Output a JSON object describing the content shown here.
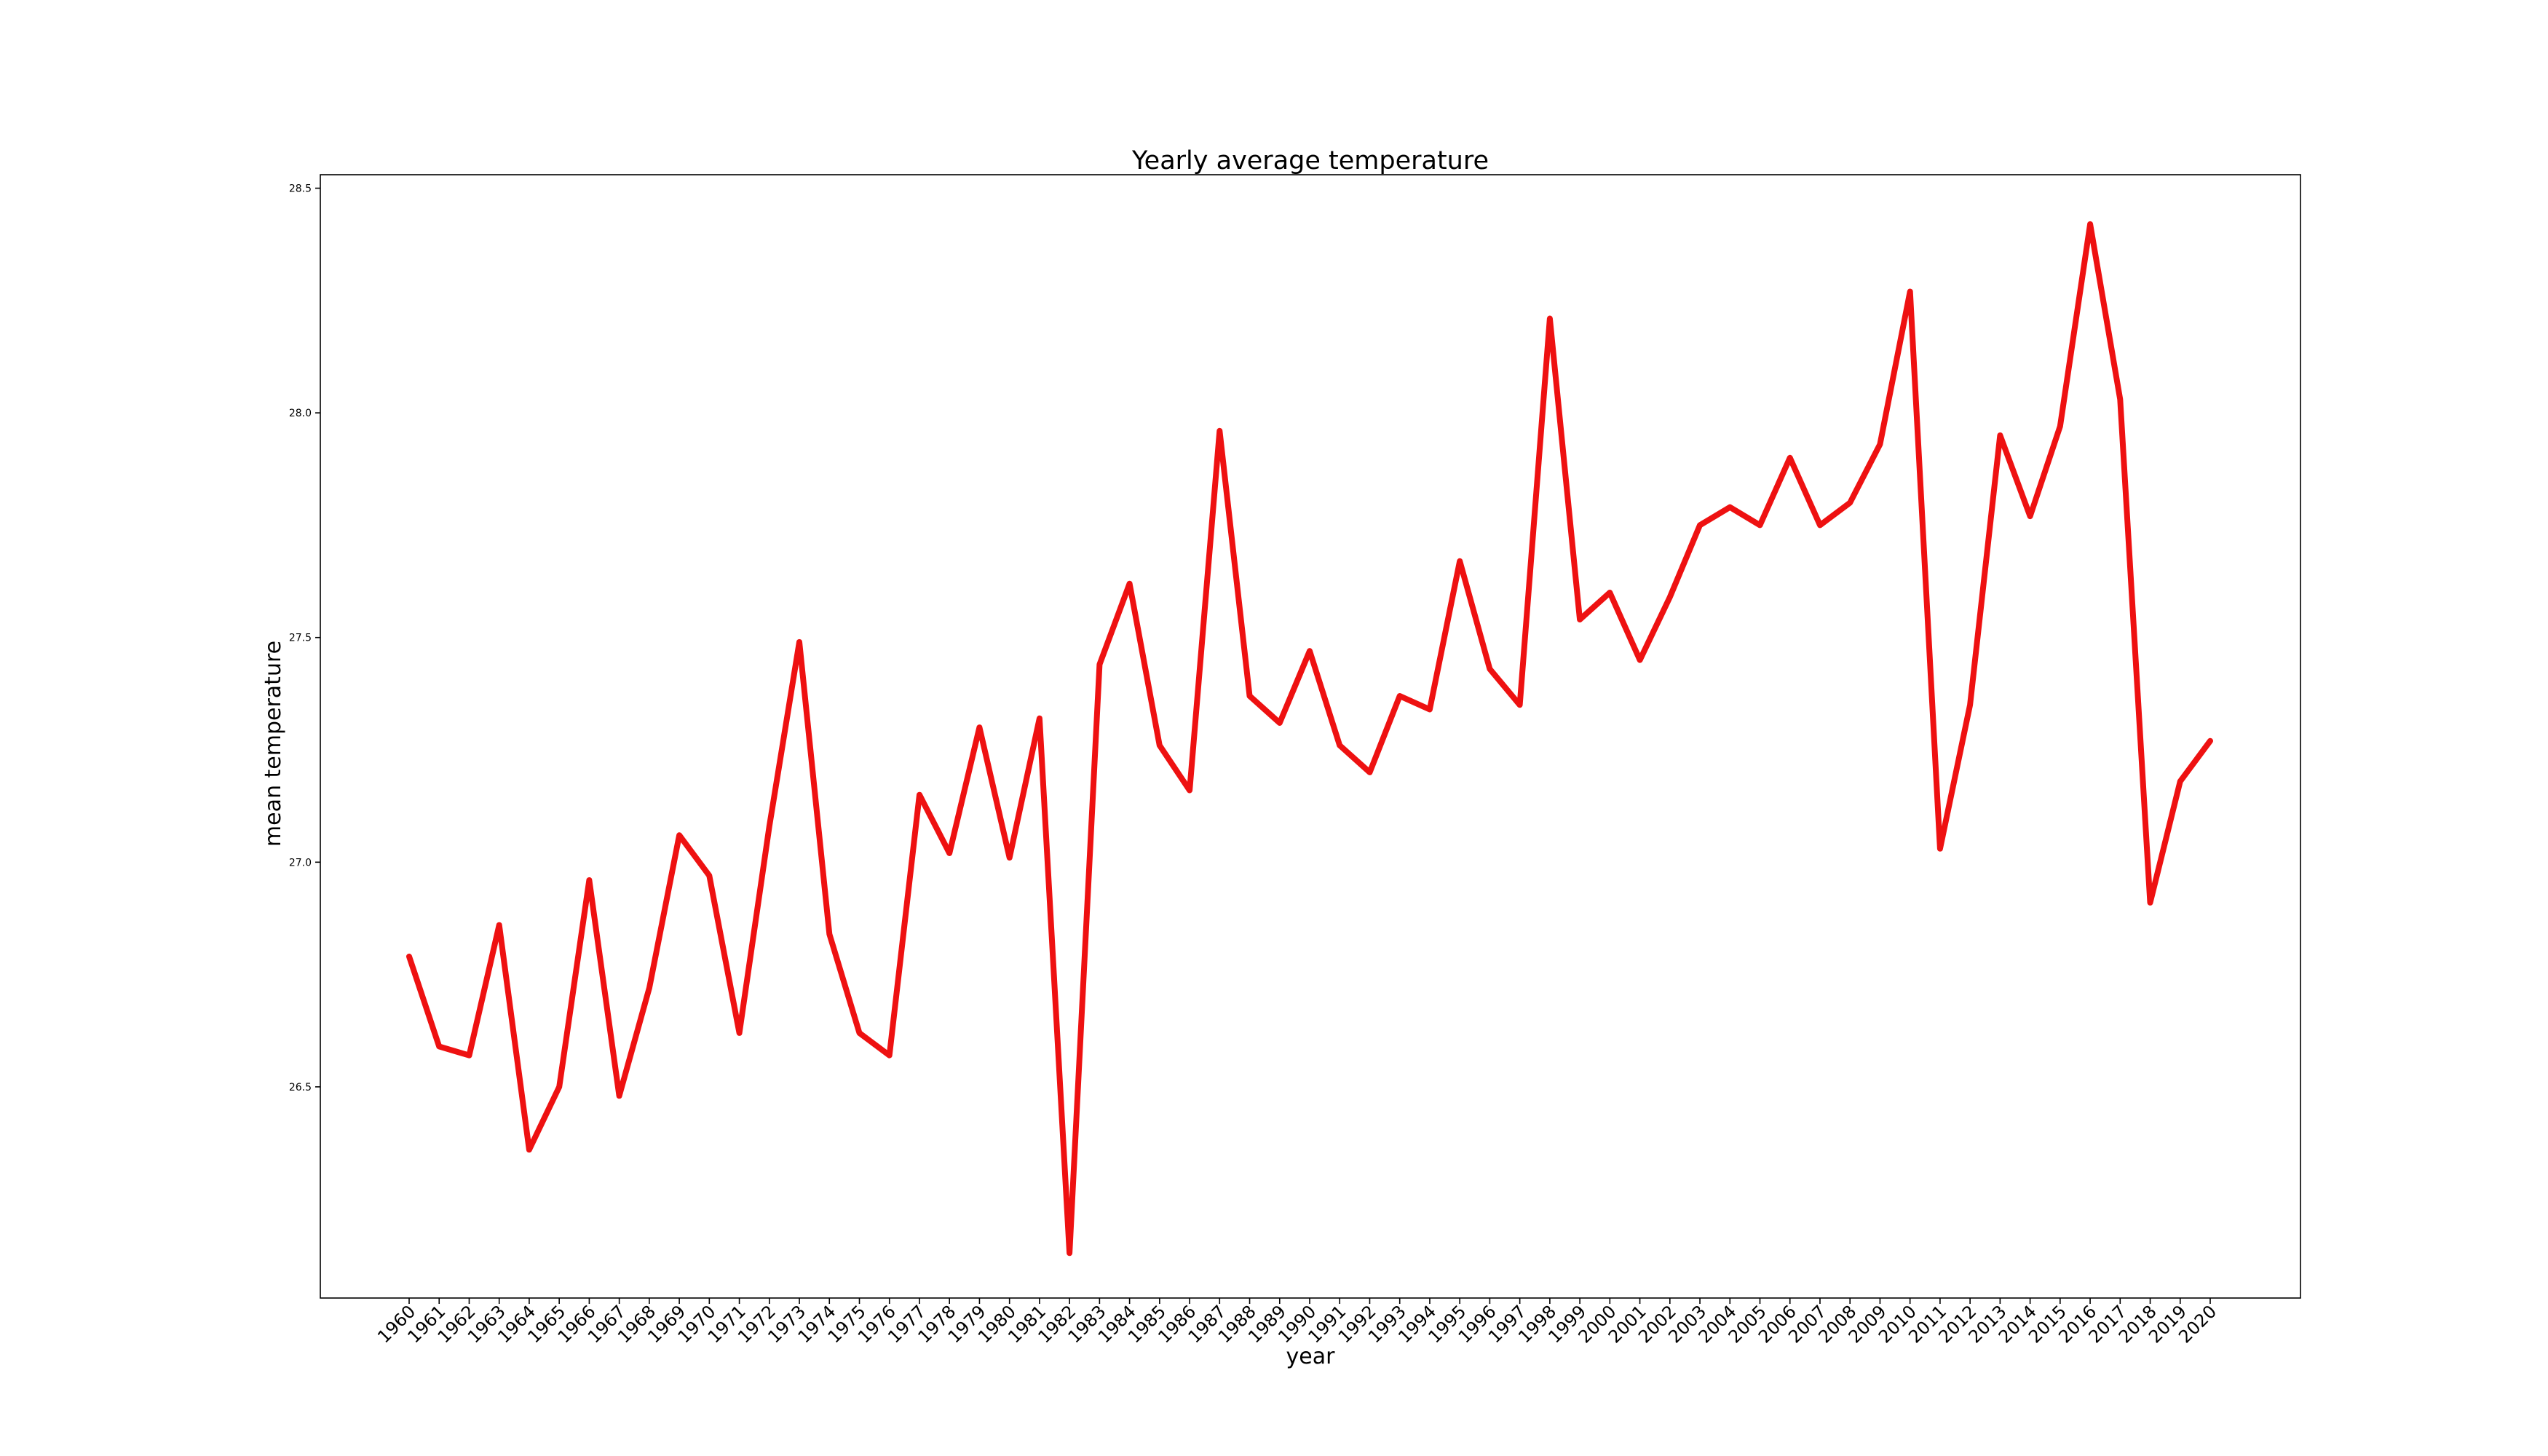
{
  "chart_data": {
    "type": "line",
    "title": "Yearly average temperature",
    "xlabel": "year",
    "ylabel": "mean temperature",
    "yticks": [
      "26.5",
      "27.0",
      "27.5",
      "28.0",
      "28.5"
    ],
    "ylim": [
      26.03,
      28.53
    ],
    "grid": false,
    "legend": "none",
    "x": [
      "1960",
      "1961",
      "1962",
      "1963",
      "1964",
      "1965",
      "1966",
      "1967",
      "1968",
      "1969",
      "1970",
      "1971",
      "1972",
      "1973",
      "1974",
      "1975",
      "1976",
      "1977",
      "1978",
      "1979",
      "1980",
      "1981",
      "1982",
      "1983",
      "1984",
      "1985",
      "1986",
      "1987",
      "1988",
      "1989",
      "1990",
      "1991",
      "1992",
      "1993",
      "1994",
      "1995",
      "1996",
      "1997",
      "1998",
      "1999",
      "2000",
      "2001",
      "2002",
      "2003",
      "2004",
      "2005",
      "2006",
      "2007",
      "2008",
      "2009",
      "2010",
      "2011",
      "2012",
      "2013",
      "2014",
      "2015",
      "2016",
      "2017",
      "2018",
      "2019",
      "2020"
    ],
    "series": [
      {
        "color": "#ee1111",
        "values": [
          26.79,
          26.59,
          26.57,
          26.86,
          26.36,
          26.5,
          26.96,
          26.48,
          26.72,
          27.06,
          26.97,
          26.62,
          27.08,
          27.49,
          26.84,
          26.62,
          26.57,
          27.15,
          27.02,
          27.3,
          27.01,
          27.32,
          26.13,
          27.44,
          27.62,
          27.26,
          27.16,
          27.96,
          27.37,
          27.31,
          27.47,
          27.26,
          27.2,
          27.37,
          27.34,
          27.67,
          27.43,
          27.35,
          28.21,
          27.54,
          27.6,
          27.45,
          27.59,
          27.75,
          27.79,
          27.75,
          27.9,
          27.75,
          27.8,
          27.93,
          28.27,
          27.03,
          27.35,
          27.95,
          27.77,
          27.97,
          28.42,
          28.03,
          26.91,
          27.18,
          27.27
        ]
      }
    ]
  }
}
